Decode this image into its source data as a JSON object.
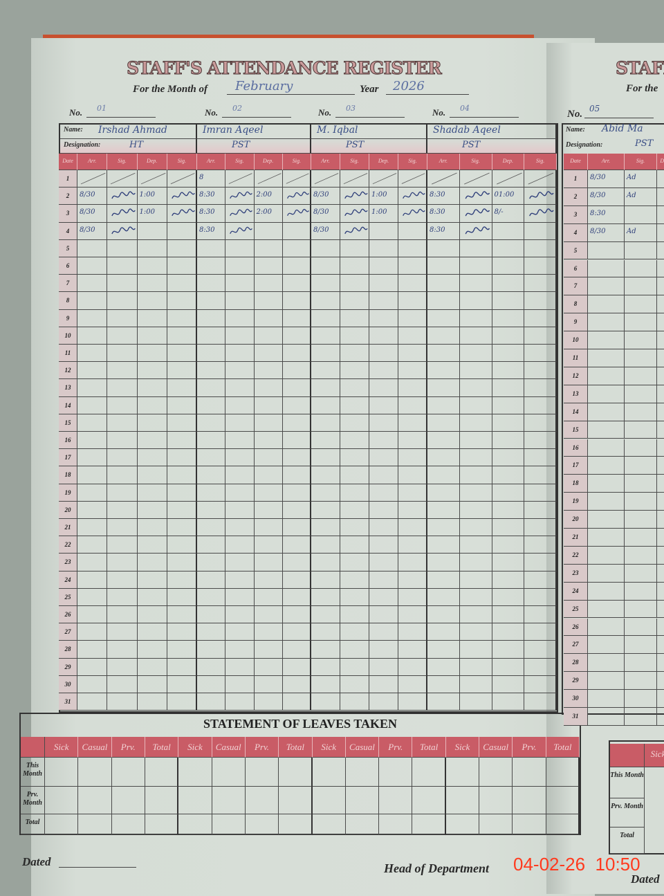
{
  "register": {
    "title": "STAFF'S ATTENDANCE REGISTER",
    "month_label": "For the Month of",
    "month_value": "February",
    "year_label": "Year",
    "year_value": "2026",
    "no_label": "No.",
    "name_label": "Name:",
    "designation_label": "Designation:",
    "date_header": "Date",
    "sub_headers": [
      "Arr.",
      "Sig.",
      "Dep.",
      "Sig."
    ],
    "dates": [
      "1",
      "2",
      "3",
      "4",
      "5",
      "6",
      "7",
      "8",
      "9",
      "10",
      "11",
      "12",
      "13",
      "14",
      "15",
      "16",
      "17",
      "18",
      "19",
      "20",
      "21",
      "22",
      "23",
      "24",
      "25",
      "26",
      "27",
      "28",
      "29",
      "30",
      "31"
    ],
    "staff": [
      {
        "no": "01",
        "name": "Irshad Ahmad",
        "designation": "HT",
        "entries": [
          [
            "",
            "",
            "",
            ""
          ],
          [
            "8/30",
            "~",
            "1:00",
            "~"
          ],
          [
            "8/30",
            "~",
            "1:00",
            "~"
          ],
          [
            "8/30",
            "~",
            "",
            ""
          ]
        ]
      },
      {
        "no": "02",
        "name": "Imran Aqeel",
        "designation": "PST",
        "entries": [
          [
            "8",
            "",
            "",
            ""
          ],
          [
            "8:30",
            "~",
            "2:00",
            "~"
          ],
          [
            "8:30",
            "~",
            "2:00",
            "~"
          ],
          [
            "8:30",
            "~",
            "",
            ""
          ]
        ]
      },
      {
        "no": "03",
        "name": "M. Iqbal",
        "designation": "PST",
        "entries": [
          [
            "",
            "",
            "",
            ""
          ],
          [
            "8/30",
            "~",
            "1:00",
            "~"
          ],
          [
            "8/30",
            "~",
            "1:00",
            "~"
          ],
          [
            "8/30",
            "~",
            "",
            ""
          ]
        ]
      },
      {
        "no": "04",
        "name": "Shadab Aqeel",
        "designation": "PST",
        "entries": [
          [
            "",
            "",
            "",
            ""
          ],
          [
            "8:30",
            "~",
            "01:00",
            "~"
          ],
          [
            "8:30",
            "~",
            "8/-",
            "~"
          ],
          [
            "8:30",
            "~",
            "",
            ""
          ]
        ]
      }
    ]
  },
  "leaves": {
    "title": "STATEMENT OF LEAVES TAKEN",
    "headers": [
      "Sick",
      "Casual",
      "Prv.",
      "Total"
    ],
    "rows": [
      "This Month",
      "Prv. Month",
      "Total"
    ]
  },
  "footer": {
    "dated_label": "Dated",
    "head_label": "Head of Department"
  },
  "right_page": {
    "title": "STAFF",
    "month_label": "For the",
    "no_value": "05",
    "name_value": "Abid Ma",
    "designation_value": "PST",
    "entries": [
      [
        "8/30",
        "Ad"
      ],
      [
        "8/30",
        "Ad"
      ],
      [
        "8:30",
        ""
      ],
      [
        "8/30",
        "Ad"
      ]
    ],
    "leaves_header": "Sick",
    "dated_label": "Dated"
  },
  "camera_timestamp": "04-02-26  10:50",
  "colors": {
    "header_red": "#c95c66",
    "ink_blue": "#2f3f7a",
    "paper": "#d6ddd6",
    "stamp": "#ff3a1e"
  }
}
